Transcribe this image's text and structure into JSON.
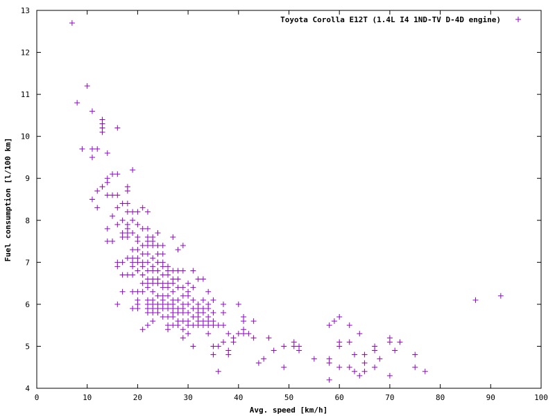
{
  "chart_data": {
    "type": "scatter",
    "title": "",
    "xlabel": "Avg. speed [km/h]",
    "ylabel": "Fuel consumption [l/100 km]",
    "xlim": [
      0,
      100
    ],
    "ylim": [
      4,
      13
    ],
    "xticks": [
      0,
      10,
      20,
      30,
      40,
      50,
      60,
      70,
      80,
      90,
      100
    ],
    "yticks": [
      4,
      5,
      6,
      7,
      8,
      9,
      10,
      11,
      12,
      13
    ],
    "grid": false,
    "legend": {
      "position": "top-right"
    },
    "marker": "+",
    "color": "#9400d3",
    "series": [
      {
        "name": "Toyota Corolla E12T (1.4L I4 1ND-TV D-4D engine)",
        "points": [
          [
            7,
            12.7
          ],
          [
            8,
            10.8
          ],
          [
            9,
            9.7
          ],
          [
            10,
            11.2
          ],
          [
            11,
            10.6
          ],
          [
            11,
            9.7
          ],
          [
            11,
            9.5
          ],
          [
            11,
            8.5
          ],
          [
            12,
            9.7
          ],
          [
            12,
            8.7
          ],
          [
            12,
            8.3
          ],
          [
            13,
            10.4
          ],
          [
            13,
            10.3
          ],
          [
            13,
            10.2
          ],
          [
            13,
            10.1
          ],
          [
            13,
            8.8
          ],
          [
            14,
            9.6
          ],
          [
            14,
            9.0
          ],
          [
            14,
            8.9
          ],
          [
            14,
            8.6
          ],
          [
            14,
            7.8
          ],
          [
            14,
            7.5
          ],
          [
            15,
            9.1
          ],
          [
            15,
            8.6
          ],
          [
            15,
            8.1
          ],
          [
            15,
            7.5
          ],
          [
            16,
            10.2
          ],
          [
            16,
            9.1
          ],
          [
            16,
            8.6
          ],
          [
            16,
            8.3
          ],
          [
            16,
            7.9
          ],
          [
            16,
            7.0
          ],
          [
            16,
            6.9
          ],
          [
            16,
            6.0
          ],
          [
            17,
            8.4
          ],
          [
            17,
            8.0
          ],
          [
            17,
            7.7
          ],
          [
            17,
            7.6
          ],
          [
            17,
            7.0
          ],
          [
            17,
            6.7
          ],
          [
            17,
            6.3
          ],
          [
            18,
            8.8
          ],
          [
            18,
            8.7
          ],
          [
            18,
            8.4
          ],
          [
            18,
            8.2
          ],
          [
            18,
            7.9
          ],
          [
            18,
            7.8
          ],
          [
            18,
            7.7
          ],
          [
            18,
            7.6
          ],
          [
            18,
            7.1
          ],
          [
            18,
            6.7
          ],
          [
            19,
            9.2
          ],
          [
            19,
            8.2
          ],
          [
            19,
            8.0
          ],
          [
            19,
            7.7
          ],
          [
            19,
            7.3
          ],
          [
            19,
            7.1
          ],
          [
            19,
            7.0
          ],
          [
            19,
            6.9
          ],
          [
            19,
            6.7
          ],
          [
            19,
            6.3
          ],
          [
            19,
            5.9
          ],
          [
            20,
            8.2
          ],
          [
            20,
            7.9
          ],
          [
            20,
            7.6
          ],
          [
            20,
            7.5
          ],
          [
            20,
            7.3
          ],
          [
            20,
            7.1
          ],
          [
            20,
            7.0
          ],
          [
            20,
            6.8
          ],
          [
            20,
            6.3
          ],
          [
            20,
            6.1
          ],
          [
            20,
            6.0
          ],
          [
            20,
            5.9
          ],
          [
            21,
            8.3
          ],
          [
            21,
            7.8
          ],
          [
            21,
            7.4
          ],
          [
            21,
            7.2
          ],
          [
            21,
            7.0
          ],
          [
            21,
            6.9
          ],
          [
            21,
            6.7
          ],
          [
            21,
            6.5
          ],
          [
            21,
            6.3
          ],
          [
            21,
            5.4
          ],
          [
            22,
            8.2
          ],
          [
            22,
            7.8
          ],
          [
            22,
            7.6
          ],
          [
            22,
            7.5
          ],
          [
            22,
            7.4
          ],
          [
            22,
            7.2
          ],
          [
            22,
            7.0
          ],
          [
            22,
            6.8
          ],
          [
            22,
            6.6
          ],
          [
            22,
            6.5
          ],
          [
            22,
            6.4
          ],
          [
            22,
            6.1
          ],
          [
            22,
            6.0
          ],
          [
            22,
            5.9
          ],
          [
            22,
            5.8
          ],
          [
            22,
            5.5
          ],
          [
            23,
            7.6
          ],
          [
            23,
            7.5
          ],
          [
            23,
            7.4
          ],
          [
            23,
            7.1
          ],
          [
            23,
            6.9
          ],
          [
            23,
            6.8
          ],
          [
            23,
            6.6
          ],
          [
            23,
            6.5
          ],
          [
            23,
            6.3
          ],
          [
            23,
            6.1
          ],
          [
            23,
            6.0
          ],
          [
            23,
            5.9
          ],
          [
            23,
            5.8
          ],
          [
            23,
            5.6
          ],
          [
            24,
            7.7
          ],
          [
            24,
            7.4
          ],
          [
            24,
            7.2
          ],
          [
            24,
            7.0
          ],
          [
            24,
            6.8
          ],
          [
            24,
            6.6
          ],
          [
            24,
            6.5
          ],
          [
            24,
            6.2
          ],
          [
            24,
            6.0
          ],
          [
            24,
            5.9
          ],
          [
            24,
            5.8
          ],
          [
            25,
            7.4
          ],
          [
            25,
            7.2
          ],
          [
            25,
            7.0
          ],
          [
            25,
            6.9
          ],
          [
            25,
            6.7
          ],
          [
            25,
            6.5
          ],
          [
            25,
            6.4
          ],
          [
            25,
            6.2
          ],
          [
            25,
            6.1
          ],
          [
            25,
            6.0
          ],
          [
            25,
            5.9
          ],
          [
            25,
            5.7
          ],
          [
            26,
            6.9
          ],
          [
            26,
            6.8
          ],
          [
            26,
            6.7
          ],
          [
            26,
            6.5
          ],
          [
            26,
            6.4
          ],
          [
            26,
            6.2
          ],
          [
            26,
            6.0
          ],
          [
            26,
            5.9
          ],
          [
            26,
            5.7
          ],
          [
            26,
            5.5
          ],
          [
            26,
            5.4
          ],
          [
            27,
            7.6
          ],
          [
            27,
            6.8
          ],
          [
            27,
            6.6
          ],
          [
            27,
            6.5
          ],
          [
            27,
            6.3
          ],
          [
            27,
            6.1
          ],
          [
            27,
            6.0
          ],
          [
            27,
            5.9
          ],
          [
            27,
            5.8
          ],
          [
            27,
            5.7
          ],
          [
            27,
            5.5
          ],
          [
            28,
            7.3
          ],
          [
            28,
            6.8
          ],
          [
            28,
            6.6
          ],
          [
            28,
            6.4
          ],
          [
            28,
            6.1
          ],
          [
            28,
            5.9
          ],
          [
            28,
            5.8
          ],
          [
            28,
            5.6
          ],
          [
            28,
            5.5
          ],
          [
            29,
            7.4
          ],
          [
            29,
            6.8
          ],
          [
            29,
            6.4
          ],
          [
            29,
            6.2
          ],
          [
            29,
            6.0
          ],
          [
            29,
            5.9
          ],
          [
            29,
            5.8
          ],
          [
            29,
            5.6
          ],
          [
            29,
            5.4
          ],
          [
            29,
            5.2
          ],
          [
            30,
            6.5
          ],
          [
            30,
            6.3
          ],
          [
            30,
            6.2
          ],
          [
            30,
            6.0
          ],
          [
            30,
            5.8
          ],
          [
            30,
            5.6
          ],
          [
            30,
            5.5
          ],
          [
            30,
            5.3
          ],
          [
            31,
            6.8
          ],
          [
            31,
            6.4
          ],
          [
            31,
            6.1
          ],
          [
            31,
            5.9
          ],
          [
            31,
            5.7
          ],
          [
            31,
            5.5
          ],
          [
            31,
            5.0
          ],
          [
            32,
            6.6
          ],
          [
            32,
            6.0
          ],
          [
            32,
            5.9
          ],
          [
            32,
            5.8
          ],
          [
            32,
            5.7
          ],
          [
            32,
            5.6
          ],
          [
            32,
            5.5
          ],
          [
            33,
            6.6
          ],
          [
            33,
            6.1
          ],
          [
            33,
            5.9
          ],
          [
            33,
            5.8
          ],
          [
            33,
            5.6
          ],
          [
            33,
            5.5
          ],
          [
            34,
            6.3
          ],
          [
            34,
            6.0
          ],
          [
            34,
            5.9
          ],
          [
            34,
            5.7
          ],
          [
            34,
            5.6
          ],
          [
            34,
            5.5
          ],
          [
            34,
            5.3
          ],
          [
            35,
            6.1
          ],
          [
            35,
            5.8
          ],
          [
            35,
            5.6
          ],
          [
            35,
            5.5
          ],
          [
            35,
            5.0
          ],
          [
            35,
            4.8
          ],
          [
            36,
            5.5
          ],
          [
            36,
            5.0
          ],
          [
            36,
            4.4
          ],
          [
            37,
            6.0
          ],
          [
            37,
            5.8
          ],
          [
            37,
            5.5
          ],
          [
            37,
            5.1
          ],
          [
            38,
            5.3
          ],
          [
            38,
            4.9
          ],
          [
            38,
            4.8
          ],
          [
            39,
            5.2
          ],
          [
            39,
            5.1
          ],
          [
            40,
            6.0
          ],
          [
            40,
            5.3
          ],
          [
            41,
            5.7
          ],
          [
            41,
            5.6
          ],
          [
            41,
            5.4
          ],
          [
            41,
            5.3
          ],
          [
            42,
            5.3
          ],
          [
            43,
            5.6
          ],
          [
            43,
            5.2
          ],
          [
            44,
            4.6
          ],
          [
            45,
            4.7
          ],
          [
            46,
            5.2
          ],
          [
            47,
            4.9
          ],
          [
            49,
            5.0
          ],
          [
            49,
            4.5
          ],
          [
            51,
            5.1
          ],
          [
            51,
            5.0
          ],
          [
            52,
            5.0
          ],
          [
            52,
            4.9
          ],
          [
            55,
            4.7
          ],
          [
            58,
            5.5
          ],
          [
            58,
            4.7
          ],
          [
            58,
            4.6
          ],
          [
            58,
            4.2
          ],
          [
            59,
            5.6
          ],
          [
            60,
            5.7
          ],
          [
            60,
            5.1
          ],
          [
            60,
            5.0
          ],
          [
            60,
            4.5
          ],
          [
            62,
            5.5
          ],
          [
            62,
            5.1
          ],
          [
            62,
            4.5
          ],
          [
            63,
            4.8
          ],
          [
            63,
            4.4
          ],
          [
            64,
            5.3
          ],
          [
            64,
            4.3
          ],
          [
            65,
            4.8
          ],
          [
            65,
            4.6
          ],
          [
            65,
            4.4
          ],
          [
            67,
            5.0
          ],
          [
            67,
            4.9
          ],
          [
            67,
            4.5
          ],
          [
            68,
            4.7
          ],
          [
            70,
            5.2
          ],
          [
            70,
            5.1
          ],
          [
            70,
            4.3
          ],
          [
            71,
            4.9
          ],
          [
            72,
            5.1
          ],
          [
            75,
            4.8
          ],
          [
            75,
            4.5
          ],
          [
            77,
            4.4
          ],
          [
            87,
            6.1
          ],
          [
            92,
            6.2
          ]
        ]
      }
    ]
  }
}
